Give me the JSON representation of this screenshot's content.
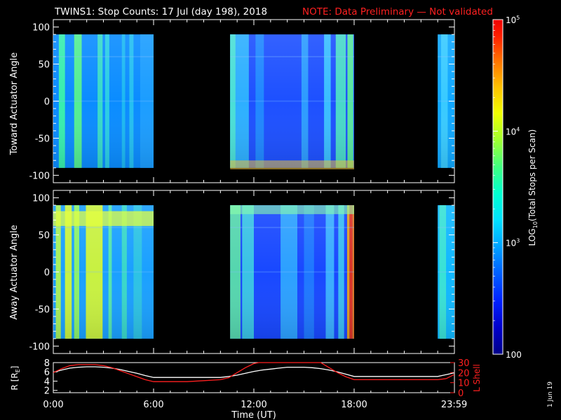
{
  "header": {
    "title": "TWINS1: Stop Counts: 17 Jul (day 198), 2018",
    "note": "NOTE: Data Preliminary — Not validated"
  },
  "side_stamp": "1 Jun 19",
  "chart_data": [
    {
      "type": "heatmap",
      "ylabel": "Toward Actuator Angle",
      "ylim": [
        -110,
        110
      ],
      "yticks": [
        100,
        50,
        0,
        -50,
        -100
      ],
      "xlim_hours": [
        0,
        24
      ],
      "y_range_filled": [
        -90,
        90
      ],
      "segments": [
        {
          "start": "00:00",
          "end": "06:00",
          "level": "moderate",
          "stripes": "yellow-green columns near 00:20-00:40, 01:15-01:40, 02:40-02:55, 03:10-03:20"
        },
        {
          "start": "10:35",
          "end": "18:00",
          "level": "low-blue",
          "stripes": "green columns near 10:35-11:40, 14:50-15:15, 16:15-17:30; green edge near -90"
        },
        {
          "start": "23:00",
          "end": "23:59",
          "level": "moderate",
          "stripes": "cyan"
        }
      ]
    },
    {
      "type": "heatmap",
      "ylabel": "Away Actuator Angle",
      "ylim": [
        -110,
        110
      ],
      "yticks": [
        100,
        50,
        0,
        -50,
        -100
      ],
      "xlim_hours": [
        0,
        24
      ],
      "y_range_filled": [
        -90,
        90
      ],
      "segments": [
        {
          "start": "00:00",
          "end": "06:00",
          "level": "moderate-high",
          "stripes": "yellow columns near 00:40-01:10, 01:55-02:55; yellow-green band near +70"
        },
        {
          "start": "10:35",
          "end": "18:00",
          "level": "low-blue",
          "stripes": "green columns near 10:35-12:00, 13:40-14:40; red-orange column near 17:40-18:00"
        },
        {
          "start": "23:00",
          "end": "23:59",
          "level": "moderate",
          "stripes": "cyan"
        }
      ]
    },
    {
      "type": "line",
      "xlabel": "Time (UT)",
      "x_ticks": [
        "0:00",
        "6:00",
        "12:00",
        "18:00",
        "23:59"
      ],
      "x_tick_hours": [
        0,
        6,
        12,
        18,
        23.983
      ],
      "ylabel_left": "R [R",
      "ylabel_left_sub": "E",
      "ylabel_left_close": "]",
      "ylabel_right": "L Shell",
      "yticks_left": [
        8,
        6,
        4,
        2
      ],
      "yticks_right": [
        30,
        20,
        10,
        0
      ],
      "ylim_left": [
        1.5,
        8
      ],
      "ylim_right": [
        0,
        30
      ],
      "series": [
        {
          "color": "#ffffff",
          "axis": "left",
          "x": [
            0,
            0.5,
            1,
            1.5,
            2,
            2.5,
            3,
            3.5,
            4,
            4.5,
            5,
            5.5,
            6,
            7,
            8,
            9,
            10,
            10.5,
            11,
            11.5,
            12,
            12.5,
            13,
            13.5,
            14,
            14.5,
            15,
            15.5,
            16,
            16.5,
            17,
            17.5,
            18,
            19,
            20,
            21,
            22,
            23,
            23.5,
            23.983
          ],
          "y": [
            5.9,
            6.4,
            6.8,
            7.0,
            7.1,
            7.1,
            7.0,
            6.8,
            6.5,
            6.1,
            5.7,
            5.2,
            4.8,
            4.8,
            4.8,
            4.8,
            4.8,
            5.0,
            5.3,
            5.7,
            6.1,
            6.4,
            6.6,
            6.8,
            7.0,
            7.0,
            7.0,
            6.9,
            6.7,
            6.4,
            6.0,
            5.5,
            5.0,
            5.0,
            5.0,
            5.0,
            5.0,
            5.0,
            5.4,
            5.8
          ]
        },
        {
          "color": "#ff2020",
          "axis": "right",
          "x": [
            0,
            0.5,
            1,
            1.5,
            2,
            2.5,
            3,
            3.5,
            4,
            4.5,
            5,
            5.5,
            6,
            7,
            8,
            9,
            10,
            10.5,
            11,
            11.5,
            12,
            12.3,
            16,
            16.5,
            17,
            17.5,
            18,
            19,
            20,
            21,
            22,
            23,
            23.5,
            23.983
          ],
          "y": [
            20,
            24,
            27,
            28,
            28,
            28,
            27,
            25,
            22,
            19,
            16,
            13,
            11,
            11,
            11,
            12,
            13,
            15,
            20,
            25,
            29,
            30,
            30,
            25,
            20,
            16,
            13,
            13,
            13,
            13,
            13,
            13,
            14,
            18
          ]
        }
      ]
    }
  ],
  "colorbar": {
    "label_prefix": "LOG",
    "label_sub": "10",
    "label_suffix": "(Total Stops per Scan)",
    "ticks": [
      {
        "base": "10",
        "exp": "5",
        "value": 100000
      },
      {
        "base": "10",
        "exp": "4",
        "value": 10000
      },
      {
        "base": "10",
        "exp": "3",
        "value": 1000
      },
      {
        "base": "100",
        "exp": "",
        "value": 100
      }
    ],
    "colors": [
      "#000088",
      "#0000cc",
      "#0022ff",
      "#0066ff",
      "#00aaff",
      "#00e0ff",
      "#00ffd0",
      "#40ff80",
      "#a0ff30",
      "#f0ff00",
      "#ffc000",
      "#ff7000",
      "#ff2000",
      "#ee0000"
    ]
  }
}
